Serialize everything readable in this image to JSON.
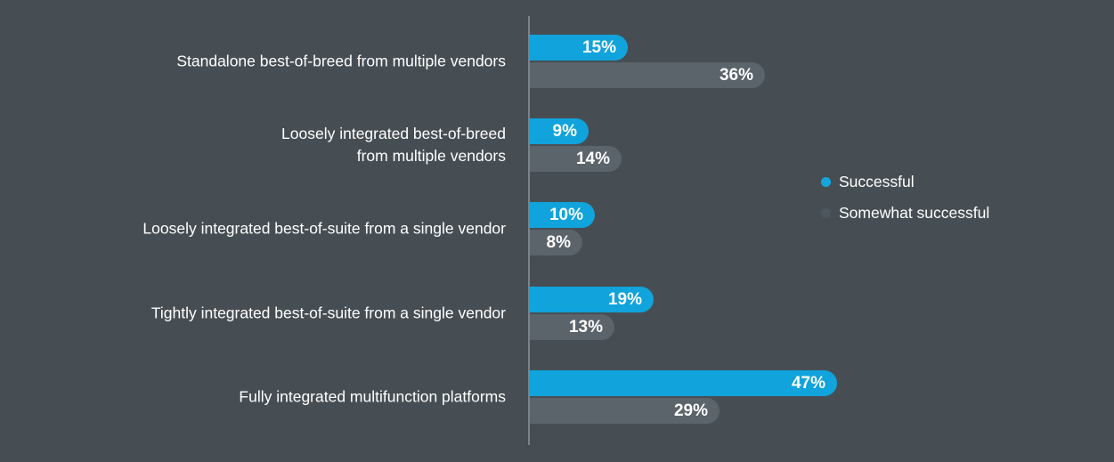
{
  "colors": {
    "background": "#464e54",
    "axis_line": "#7b828a",
    "successful_bar": "#10a3dc",
    "somewhat_bar": "#5b636b",
    "text": "#ffffff"
  },
  "chart_data": {
    "type": "bar",
    "orientation": "horizontal",
    "title": "",
    "xlabel": "",
    "ylabel": "",
    "xlim": [
      0,
      50
    ],
    "grid": false,
    "legend_position": "right",
    "value_suffix": "%",
    "categories": [
      "Standalone best-of-breed from multiple vendors",
      "Loosely integrated best-of-breed\nfrom multiple vendors",
      "Loosely integrated best-of-suite from a single vendor",
      "Tightly integrated best-of-suite from a single vendor",
      "Fully integrated multifunction platforms"
    ],
    "series": [
      {
        "name": "Successful",
        "color": "#10a3dc",
        "values": [
          15,
          9,
          10,
          19,
          47
        ]
      },
      {
        "name": "Somewhat successful",
        "color": "#5b636b",
        "values": [
          36,
          14,
          8,
          13,
          29
        ]
      }
    ]
  },
  "legend": {
    "items": [
      {
        "label": "Successful",
        "dot_color": "#16a5dd"
      },
      {
        "label": "Somewhat successful",
        "dot_color": "#4f575e"
      }
    ]
  }
}
